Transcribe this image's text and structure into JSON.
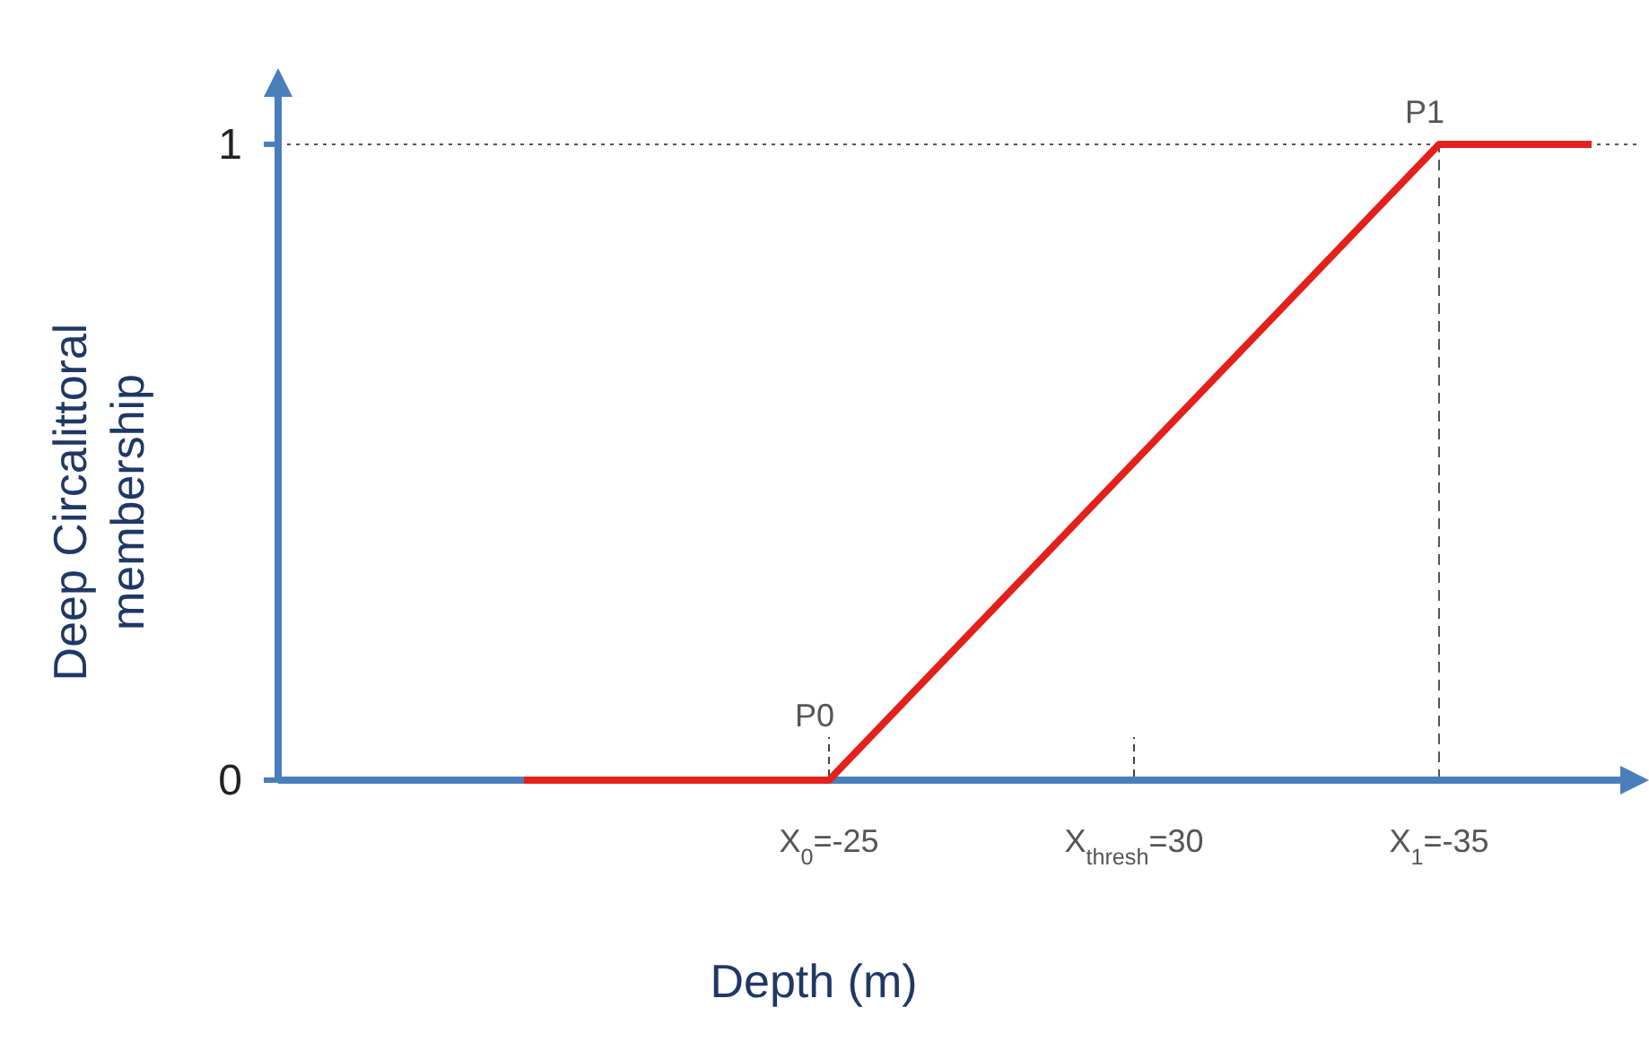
{
  "chart_data": {
    "type": "line",
    "xlabel": "Depth (m)",
    "ylabel": "Deep Circalittoral membership",
    "categories": [
      null,
      null,
      "X$_{0}$=-25",
      null,
      "X$_{thresh}$=30",
      null,
      "X$_{1}$=-35",
      null
    ],
    "series": [
      {
        "color": "#e3201b",
        "values": [
          0,
          0,
          0,
          0.25,
          0.5,
          0.75,
          1,
          1
        ]
      }
    ],
    "ylim": [
      0,
      1.1
    ],
    "yticks": [
      0,
      1
    ],
    "ref_lines": [
      {
        "axis": "x",
        "value": "X$_{1}$=-35",
        "line_style": "dashed"
      },
      {
        "axis": "y",
        "value": 1,
        "line_style": "dotted"
      }
    ],
    "annotations": [
      {
        "text": "P0",
        "x": "X$_{0}$=-25",
        "y": 0
      },
      {
        "text": "P1",
        "x": "X$_{1}$=-35",
        "y": 1
      }
    ],
    "grid": false,
    "marker": "none",
    "line_style": "solid"
  }
}
